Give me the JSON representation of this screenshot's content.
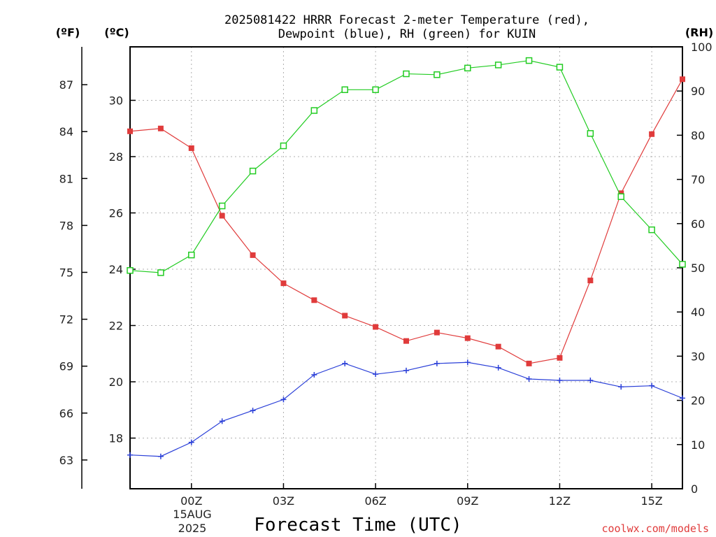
{
  "chart_data": {
    "type": "line",
    "title_line1": "2025081422 HRRR Forecast 2-meter Temperature (red),",
    "title_line2": "Dewpoint (blue), RH (green) for KUIN",
    "xlabel": "Forecast Time (UTC)",
    "credit": "coolwx.com/models",
    "date_label": [
      "15AUG",
      "2025"
    ],
    "x_hours": [
      -2,
      -1,
      0,
      1,
      2,
      3,
      4,
      5,
      6,
      7,
      8,
      9,
      10,
      11,
      12,
      13,
      14,
      15,
      16
    ],
    "x_ticks": [
      {
        "hour": 0,
        "label": "00Z"
      },
      {
        "hour": 3,
        "label": "03Z"
      },
      {
        "hour": 6,
        "label": "06Z"
      },
      {
        "hour": 9,
        "label": "09Z"
      },
      {
        "hour": 12,
        "label": "12Z"
      },
      {
        "hour": 15,
        "label": "15Z"
      }
    ],
    "xlim": [
      -2,
      16
    ],
    "axes": {
      "celsius": {
        "unit": "(ºC)",
        "ylim": [
          16.2,
          31.9
        ],
        "ticks": [
          18,
          20,
          22,
          24,
          26,
          28,
          30
        ]
      },
      "fahrenheit": {
        "unit": "(ºF)",
        "ticks": [
          63,
          66,
          69,
          72,
          75,
          78,
          81,
          84,
          87
        ]
      },
      "rh": {
        "unit": "(RH)",
        "ylim": [
          0,
          100
        ],
        "ticks": [
          0,
          10,
          20,
          30,
          40,
          50,
          60,
          70,
          80,
          90,
          100
        ]
      }
    },
    "grid": true,
    "series": [
      {
        "name": "Temperature",
        "axis": "celsius",
        "color": "#e03b3b",
        "marker": "filled-square",
        "values": [
          28.9,
          29.0,
          28.3,
          25.9,
          24.5,
          23.5,
          22.9,
          22.35,
          21.95,
          21.45,
          21.75,
          21.55,
          21.25,
          20.65,
          20.85,
          23.6,
          26.7,
          28.8,
          30.75
        ]
      },
      {
        "name": "Dewpoint",
        "axis": "celsius",
        "color": "#2a3fd8",
        "marker": "plus",
        "values": [
          17.4,
          17.35,
          17.85,
          18.6,
          18.98,
          19.37,
          20.25,
          20.65,
          20.27,
          20.4,
          20.65,
          20.69,
          20.5,
          20.1,
          20.05,
          20.05,
          19.82,
          19.86,
          19.42
        ]
      },
      {
        "name": "RH",
        "axis": "rh",
        "color": "#22cc22",
        "marker": "open-square",
        "values": [
          49.4,
          48.9,
          52.9,
          64.0,
          71.9,
          77.6,
          85.6,
          90.3,
          90.3,
          93.9,
          93.7,
          95.2,
          95.9,
          96.9,
          95.4,
          80.4,
          66.1,
          58.6,
          50.8
        ]
      }
    ]
  }
}
